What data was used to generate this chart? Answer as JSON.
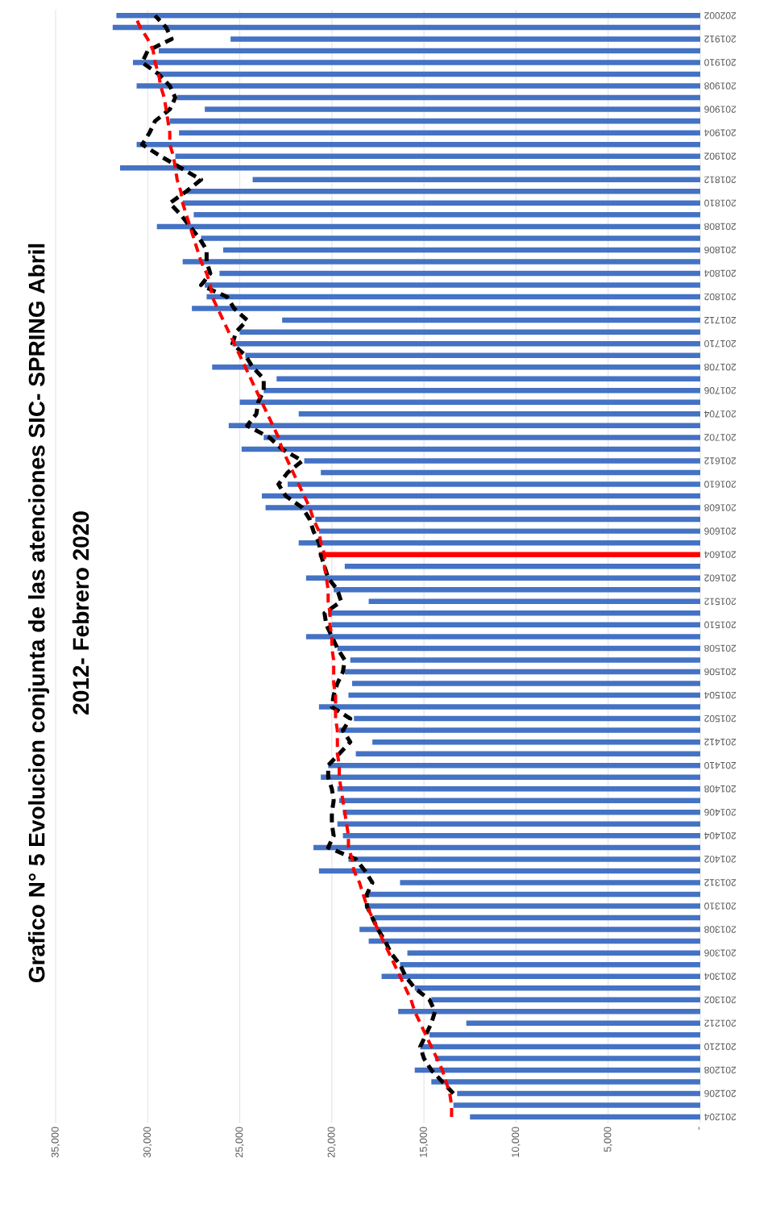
{
  "chart_data": {
    "type": "bar",
    "orientation": "horizontal",
    "title": "Grafico N° 5 Evolucion conjunta de las atenciones  SIC- SPRING Abril",
    "subtitle": "2012- Febrero 2020",
    "categories": [
      "202002",
      null,
      "201912",
      null,
      "201910",
      null,
      "201908",
      null,
      "201906",
      null,
      "201904",
      null,
      "201902",
      null,
      "201812",
      null,
      "201810",
      null,
      "201808",
      null,
      "201806",
      null,
      "201804",
      null,
      "201802",
      null,
      "201712",
      null,
      "201710",
      null,
      "201708",
      null,
      "201706",
      null,
      "201704",
      null,
      "201702",
      null,
      "201612",
      null,
      "201610",
      null,
      "201608",
      null,
      "201606",
      null,
      "201604",
      null,
      "201602",
      null,
      "201512",
      null,
      "201510",
      null,
      "201508",
      null,
      "201506",
      null,
      "201504",
      null,
      "201502",
      null,
      "201412",
      null,
      "201410",
      null,
      "201408",
      null,
      "201406",
      null,
      "201404",
      null,
      "201402",
      null,
      "201312",
      null,
      "201310",
      null,
      "201308",
      null,
      "201306",
      null,
      "201304",
      null,
      "201302",
      null,
      "201212",
      null,
      "201210",
      null,
      "201208",
      null,
      "201206",
      null,
      "201204"
    ],
    "series": [
      {
        "colors": [
          "#4472c4",
          "#4472c4",
          "#4472c4",
          "#4472c4",
          "#4472c4",
          "#4472c4",
          "#4472c4",
          "#4472c4",
          "#4472c4",
          "#4472c4",
          "#4472c4",
          "#4472c4",
          "#4472c4",
          "#4472c4",
          "#4472c4",
          "#4472c4",
          "#4472c4",
          "#4472c4",
          "#4472c4",
          "#4472c4",
          "#4472c4",
          "#4472c4",
          "#4472c4",
          "#4472c4",
          "#4472c4",
          "#4472c4",
          "#4472c4",
          "#4472c4",
          "#4472c4",
          "#4472c4",
          "#4472c4",
          "#4472c4",
          "#4472c4",
          "#4472c4",
          "#4472c4",
          "#4472c4",
          "#4472c4",
          "#4472c4",
          "#4472c4",
          "#4472c4",
          "#4472c4",
          "#4472c4",
          "#4472c4",
          "#4472c4",
          "#4472c4",
          "#4472c4",
          "#ff0000",
          "#4472c4",
          "#4472c4",
          "#4472c4",
          "#4472c4",
          "#4472c4",
          "#4472c4",
          "#4472c4",
          "#4472c4",
          "#4472c4",
          "#4472c4",
          "#4472c4",
          "#4472c4",
          "#4472c4",
          "#4472c4",
          "#4472c4",
          "#4472c4",
          "#4472c4",
          "#4472c4",
          "#4472c4",
          "#4472c4",
          "#4472c4",
          "#4472c4",
          "#4472c4",
          "#4472c4",
          "#4472c4",
          "#4472c4",
          "#4472c4",
          "#4472c4",
          "#4472c4",
          "#4472c4",
          "#4472c4",
          "#4472c4",
          "#4472c4",
          "#4472c4",
          "#4472c4",
          "#4472c4",
          "#4472c4",
          "#4472c4",
          "#4472c4",
          "#4472c4",
          "#4472c4",
          "#4472c4",
          "#4472c4",
          "#4472c4",
          "#4472c4",
          "#4472c4",
          "#4472c4",
          "#4472c4"
        ],
        "values": [
          31700,
          31900,
          25500,
          29400,
          30800,
          29500,
          30600,
          28400,
          26900,
          28800,
          28300,
          30600,
          28500,
          31500,
          24300,
          27900,
          28100,
          27500,
          29500,
          27100,
          25900,
          28100,
          26100,
          26900,
          26800,
          27600,
          22700,
          25000,
          25400,
          24700,
          26500,
          23000,
          23700,
          25000,
          21800,
          25600,
          23700,
          24900,
          21500,
          20600,
          22400,
          23800,
          23600,
          20900,
          20700,
          21800,
          20700,
          19300,
          21400,
          19900,
          18000,
          20200,
          20000,
          21400,
          19700,
          19000,
          19300,
          18900,
          19100,
          20700,
          18800,
          19600,
          17800,
          18700,
          20200,
          20600,
          19700,
          19600,
          19400,
          19700,
          19400,
          21000,
          19100,
          20700,
          16300,
          18000,
          18200,
          17700,
          18500,
          18000,
          15900,
          16300,
          17300,
          15500,
          14600,
          16400,
          12700,
          14700,
          15200,
          14400,
          15500,
          14600,
          13200,
          13400,
          12500
        ]
      },
      {
        "type": "line",
        "color": "#000000",
        "line_style": "dashed",
        "values": [
          29600,
          29000,
          28700,
          30000,
          30300,
          29400,
          28800,
          28500,
          28800,
          29600,
          29900,
          30300,
          29300,
          28200,
          27100,
          27900,
          28800,
          28200,
          27700,
          27200,
          26800,
          26800,
          26600,
          27100,
          25700,
          25300,
          24600,
          25200,
          25400,
          24700,
          24300,
          23700,
          23700,
          24000,
          24100,
          24600,
          23400,
          22700,
          21600,
          22400,
          22900,
          22500,
          21600,
          21200,
          21000,
          20700,
          20600,
          20400,
          20200,
          19700,
          19500,
          20400,
          20300,
          20000,
          19700,
          19300,
          19400,
          19700,
          19900,
          20000,
          19000,
          19400,
          19000,
          19600,
          20200,
          20200,
          20000,
          19900,
          20000,
          20000,
          19900,
          20200,
          18700,
          18200,
          17800,
          18100,
          18100,
          17800,
          17500,
          17100,
          16800,
          16300,
          16000,
          15500,
          14700,
          14400,
          14600,
          14900,
          15200,
          15000,
          14600,
          14000,
          13400,
          null,
          null
        ]
      },
      {
        "type": "line",
        "color": "#ff0000",
        "line_style": "dashed",
        "values": [
          30700,
          30400,
          30000,
          29700,
          29600,
          29400,
          29300,
          29100,
          29000,
          28900,
          28800,
          28800,
          28600,
          28500,
          28400,
          28200,
          28100,
          27900,
          27700,
          27500,
          27300,
          27100,
          26800,
          26600,
          26500,
          26200,
          25900,
          25600,
          25300,
          25000,
          24700,
          24400,
          24100,
          23800,
          23500,
          23200,
          22900,
          22700,
          22400,
          22100,
          21800,
          21500,
          21200,
          21000,
          20700,
          20600,
          20400,
          20400,
          20300,
          20200,
          20200,
          20100,
          20100,
          20000,
          20000,
          19900,
          19900,
          19900,
          19800,
          19800,
          19800,
          19700,
          19700,
          19700,
          19600,
          19600,
          19500,
          19400,
          19300,
          19200,
          19100,
          19100,
          18900,
          18800,
          18500,
          18300,
          18100,
          17800,
          17500,
          17200,
          16900,
          16600,
          16300,
          16000,
          15700,
          15500,
          15200,
          14900,
          14600,
          14300,
          14000,
          13800,
          13600,
          13500,
          13500
        ]
      }
    ],
    "xlim": [
      35000,
      0
    ],
    "xticks": [
      {
        "value": 35000,
        "label": "35,000"
      },
      {
        "value": 30000,
        "label": "30,000"
      },
      {
        "value": 25000,
        "label": "25,000"
      },
      {
        "value": 20000,
        "label": "20,000"
      },
      {
        "value": 15000,
        "label": "15,000"
      },
      {
        "value": 10000,
        "label": "10,000"
      },
      {
        "value": 5000,
        "label": "5,000"
      },
      {
        "value": 0,
        "label": "-"
      }
    ],
    "grid": "x"
  }
}
